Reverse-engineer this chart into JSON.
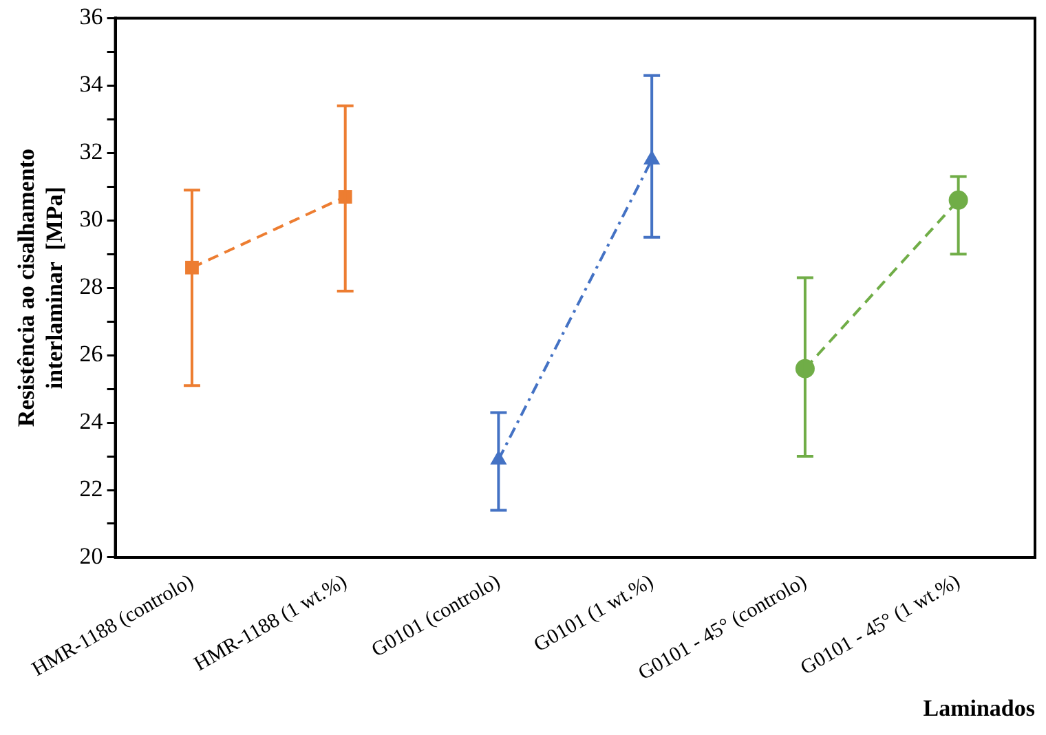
{
  "chart_data": {
    "type": "line",
    "xlabel": "Laminados",
    "ylabel": "Resistência ao cisalhamento\ninterlaminar  [MPa]",
    "categories": [
      "HMR-1188 (controlo)",
      "HMR-1188 (1 wt.%)",
      "G0101 (controlo)",
      "G0101 (1 wt.%)",
      "G0101 - 45° (controlo)",
      "G0101 - 45° (1 wt.%)"
    ],
    "series": [
      {
        "color": "#ed7d31",
        "marker": "square",
        "line_style": "dashed",
        "values": [
          28.6,
          30.7,
          null,
          null,
          null,
          null
        ],
        "errors": [
          [
            25.1,
            30.9
          ],
          [
            27.9,
            33.4
          ],
          null,
          null,
          null,
          null
        ]
      },
      {
        "color": "#4472c4",
        "marker": "triangle",
        "line_style": "dotted",
        "values": [
          null,
          null,
          22.9,
          31.8,
          null,
          null
        ],
        "errors": [
          null,
          null,
          [
            21.4,
            24.3
          ],
          [
            29.5,
            34.3
          ],
          null,
          null
        ]
      },
      {
        "color": "#70ad47",
        "marker": "circle",
        "line_style": "dashed",
        "values": [
          null,
          null,
          null,
          null,
          25.6,
          30.6
        ],
        "errors": [
          null,
          null,
          null,
          null,
          [
            23.0,
            28.3
          ],
          [
            29.0,
            31.3
          ]
        ]
      }
    ],
    "ylim": [
      20,
      36
    ],
    "yticks": [
      20,
      {
        "value": 21,
        "label": null
      },
      22,
      {
        "value": 23,
        "label": null
      },
      24,
      {
        "value": 25,
        "label": null
      },
      26,
      {
        "value": 27,
        "label": null
      },
      28,
      {
        "value": 29,
        "label": null
      },
      30,
      {
        "value": 31,
        "label": null
      },
      32,
      {
        "value": 33,
        "label": null
      },
      34,
      {
        "value": 35,
        "label": null
      },
      36
    ],
    "grid": false,
    "legend": false
  }
}
